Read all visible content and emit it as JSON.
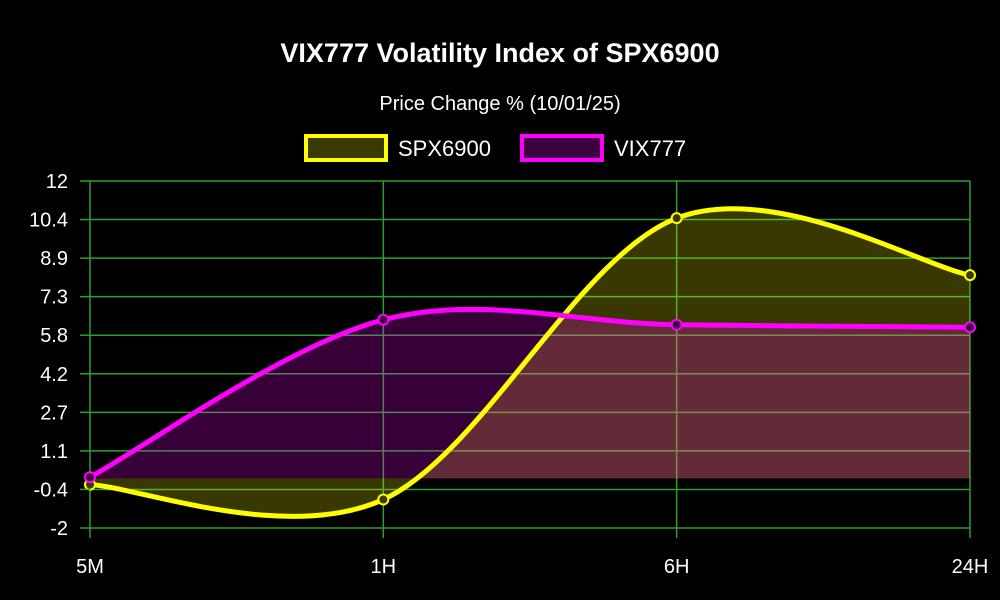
{
  "chart_data": {
    "type": "line",
    "title": "VIX777 Volatility Index of SPX6900",
    "subtitle": "Price Change % (10/01/25)",
    "categories": [
      "5M",
      "1H",
      "6H",
      "24H"
    ],
    "y_ticks": [
      "12",
      "10.4",
      "8.9",
      "7.3",
      "5.8",
      "4.2",
      "2.7",
      "1.1",
      "-0.4",
      "-2"
    ],
    "ylim": [
      -2,
      12
    ],
    "grid": true,
    "legend_position": "top-center",
    "fill": true,
    "smooth": true,
    "series": [
      {
        "name": "SPX6900",
        "values": [
          -0.25,
          -0.85,
          10.5,
          8.2
        ],
        "color": "#ffff00",
        "fill_color": "#3a3a00"
      },
      {
        "name": "VIX777",
        "values": [
          0.05,
          6.4,
          6.2,
          6.1
        ],
        "color": "#ff00ff",
        "fill_color": "#3b003d"
      }
    ],
    "colors": {
      "background": "#000000",
      "grid": "#2e9e2e",
      "text": "#ffffff",
      "overlap_fill": "#5c3a32"
    }
  }
}
